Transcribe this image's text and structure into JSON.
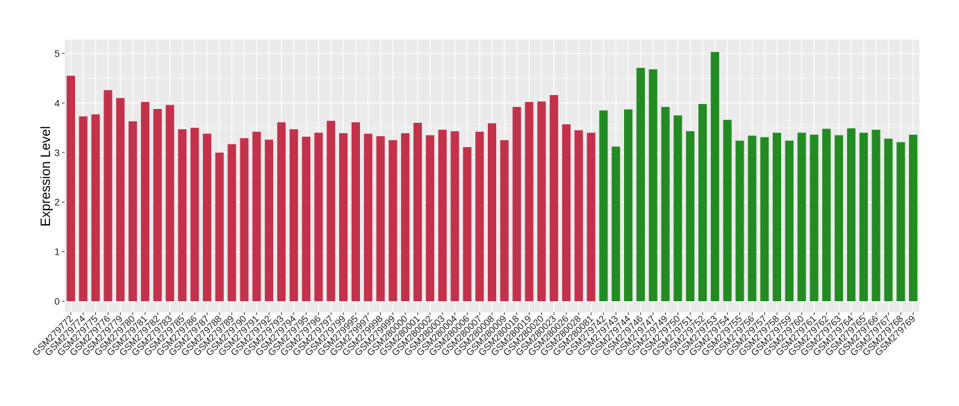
{
  "chart_data": {
    "type": "bar",
    "title": "",
    "xlabel": "",
    "ylabel": "Expression Level",
    "ylim": [
      0,
      5.25
    ],
    "yticks": [
      0,
      1,
      2,
      3,
      4,
      5
    ],
    "grid": true,
    "legend": "none",
    "colors": {
      "group1": "#C3314A",
      "group2": "#228B22",
      "panel": "#EBEBEB",
      "grid": "#FFFFFF"
    },
    "categories": [
      "GSM279772",
      "GSM279774",
      "GSM279775",
      "GSM279776",
      "GSM279779",
      "GSM279780",
      "GSM279781",
      "GSM279782",
      "GSM279783",
      "GSM279785",
      "GSM279786",
      "GSM279787",
      "GSM279788",
      "GSM279789",
      "GSM279790",
      "GSM279791",
      "GSM279792",
      "GSM279793",
      "GSM279794",
      "GSM279795",
      "GSM279796",
      "GSM279797",
      "GSM279799",
      "GSM279995",
      "GSM279997",
      "GSM279998",
      "GSM279999",
      "GSM280000",
      "GSM280001",
      "GSM280002",
      "GSM280003",
      "GSM280004",
      "GSM280006",
      "GSM280007",
      "GSM280008",
      "GSM280009",
      "GSM280018",
      "GSM280019",
      "GSM280020",
      "GSM280023",
      "GSM280026",
      "GSM280028",
      "GSM280081",
      "GSM279742",
      "GSM279743",
      "GSM279744",
      "GSM279746",
      "GSM279747",
      "GSM279749",
      "GSM279750",
      "GSM279751",
      "GSM279752",
      "GSM279753",
      "GSM279754",
      "GSM279755",
      "GSM279756",
      "GSM279757",
      "GSM279758",
      "GSM279759",
      "GSM279760",
      "GSM279761",
      "GSM279762",
      "GSM279763",
      "GSM279764",
      "GSM279765",
      "GSM279766",
      "GSM279767",
      "GSM279768",
      "GSM279769"
    ],
    "values": [
      4.55,
      3.73,
      3.77,
      4.26,
      4.1,
      3.63,
      4.02,
      3.88,
      3.96,
      3.47,
      3.5,
      3.38,
      3.0,
      3.17,
      3.29,
      3.42,
      3.26,
      3.61,
      3.47,
      3.32,
      3.4,
      3.64,
      3.39,
      3.61,
      3.38,
      3.33,
      3.25,
      3.39,
      3.6,
      3.35,
      3.46,
      3.43,
      3.11,
      3.42,
      3.59,
      3.25,
      3.92,
      4.02,
      4.03,
      4.16,
      3.57,
      3.45,
      3.4,
      3.85,
      3.12,
      3.87,
      4.71,
      4.68,
      3.92,
      3.75,
      3.43,
      3.98,
      5.03,
      3.66,
      3.24,
      3.34,
      3.31,
      3.4,
      3.24,
      3.4,
      3.36,
      3.48,
      3.35,
      3.49,
      3.4,
      3.46,
      3.28,
      3.21,
      3.36
    ],
    "groups": [
      "group1",
      "group1",
      "group1",
      "group1",
      "group1",
      "group1",
      "group1",
      "group1",
      "group1",
      "group1",
      "group1",
      "group1",
      "group1",
      "group1",
      "group1",
      "group1",
      "group1",
      "group1",
      "group1",
      "group1",
      "group1",
      "group1",
      "group1",
      "group1",
      "group1",
      "group1",
      "group1",
      "group1",
      "group1",
      "group1",
      "group1",
      "group1",
      "group1",
      "group1",
      "group1",
      "group1",
      "group1",
      "group1",
      "group1",
      "group1",
      "group1",
      "group1",
      "group1",
      "group2",
      "group2",
      "group2",
      "group2",
      "group2",
      "group2",
      "group2",
      "group2",
      "group2",
      "group2",
      "group2",
      "group2",
      "group2",
      "group2",
      "group2",
      "group2",
      "group2",
      "group2",
      "group2",
      "group2",
      "group2",
      "group2",
      "group2",
      "group2",
      "group2",
      "group2"
    ]
  }
}
